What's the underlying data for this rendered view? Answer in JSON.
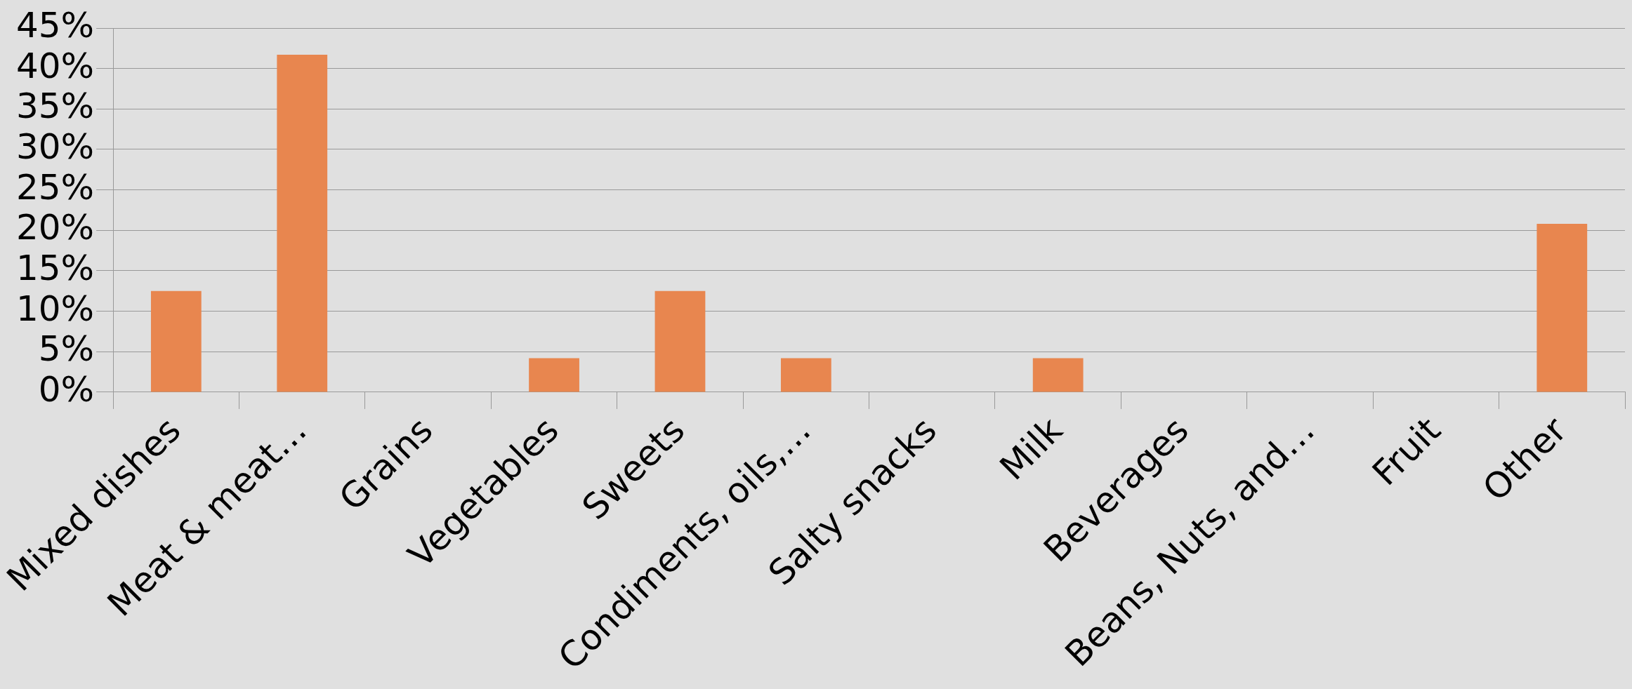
{
  "chart_data": {
    "type": "bar",
    "categories": [
      "Mixed dishes",
      "Meat & meat…",
      "Grains",
      "Vegetables",
      "Sweets",
      "Condiments, oils,…",
      "Salty snacks",
      "Milk",
      "Beverages",
      "Beans, Nuts, and…",
      "Fruit",
      "Other"
    ],
    "values": [
      12.5,
      41.7,
      0,
      4.2,
      12.5,
      4.2,
      0,
      4.2,
      0,
      0,
      0,
      20.8
    ],
    "color": "#e8864f",
    "ylim": [
      0,
      45
    ],
    "yticks": [
      {
        "value": 0,
        "label": "0%"
      },
      {
        "value": 5,
        "label": "5%"
      },
      {
        "value": 10,
        "label": "10%"
      },
      {
        "value": 15,
        "label": "15%"
      },
      {
        "value": 20,
        "label": "20%"
      },
      {
        "value": 25,
        "label": "25%"
      },
      {
        "value": 30,
        "label": "30%"
      },
      {
        "value": 35,
        "label": "35%"
      },
      {
        "value": 40,
        "label": "40%"
      },
      {
        "value": 45,
        "label": "45%"
      }
    ],
    "grid": "y",
    "legend": false
  }
}
